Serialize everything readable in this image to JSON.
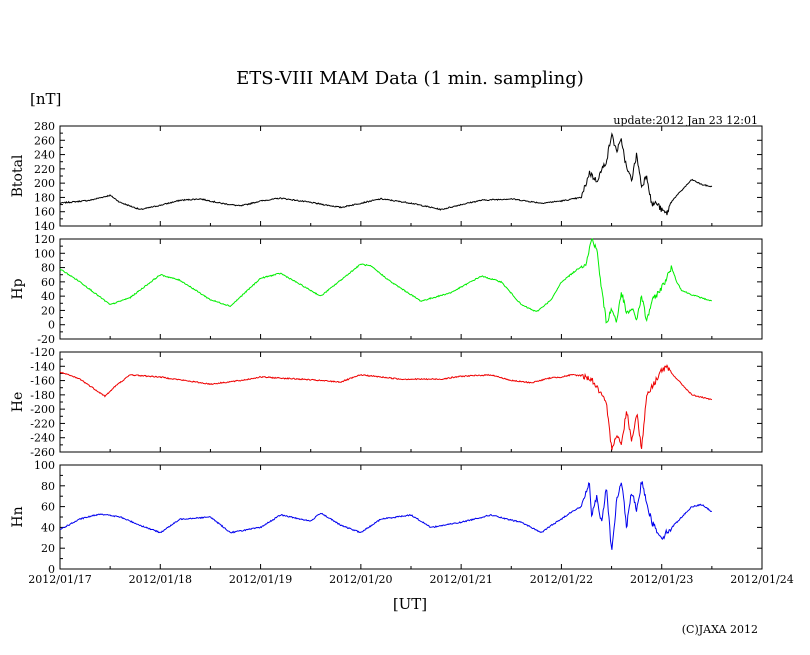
{
  "chart_data": {
    "type": "line",
    "title": "ETS-VIII MAM Data (1 min. sampling)",
    "unit_label": "[nT]",
    "update_text": "update:2012 Jan 23 12:01",
    "xlabel": "[UT]",
    "copyright": "(C)JAXA 2012",
    "x_range": [
      0,
      7
    ],
    "x_ticks": [
      "2012/01/17",
      "2012/01/18",
      "2012/01/19",
      "2012/01/20",
      "2012/01/21",
      "2012/01/22",
      "2012/01/23",
      "2012/01/24"
    ],
    "panels": [
      {
        "name": "btotal",
        "ylabel": "Btotal",
        "color": "#000000",
        "ylim": [
          140,
          280
        ],
        "y_ticks": [
          140,
          160,
          180,
          200,
          220,
          240,
          260,
          280
        ],
        "x": [
          0,
          0.3,
          0.5,
          0.6,
          0.8,
          1.0,
          1.2,
          1.4,
          1.6,
          1.8,
          2.0,
          2.2,
          2.5,
          2.8,
          3.0,
          3.2,
          3.5,
          3.8,
          4.0,
          4.2,
          4.5,
          4.8,
          5.0,
          5.2,
          5.28,
          5.35,
          5.45,
          5.5,
          5.55,
          5.6,
          5.65,
          5.7,
          5.75,
          5.8,
          5.85,
          5.9,
          5.95,
          6.0,
          6.05,
          6.1,
          6.2,
          6.3,
          6.4,
          6.5
        ],
        "y": [
          172,
          176,
          183,
          173,
          163,
          169,
          176,
          178,
          172,
          168,
          175,
          179,
          173,
          166,
          172,
          178,
          172,
          163,
          170,
          176,
          178,
          172,
          175,
          180,
          215,
          203,
          232,
          268,
          245,
          260,
          220,
          205,
          240,
          195,
          212,
          170,
          172,
          162,
          157,
          175,
          190,
          205,
          198,
          195
        ]
      },
      {
        "name": "hp",
        "ylabel": "Hp",
        "color": "#00ee00",
        "ylim": [
          -20,
          120
        ],
        "y_ticks": [
          -20,
          0,
          20,
          40,
          60,
          80,
          100,
          120
        ],
        "x": [
          0,
          0.2,
          0.5,
          0.7,
          1.0,
          1.2,
          1.5,
          1.7,
          2.0,
          2.2,
          2.6,
          3.0,
          3.1,
          3.3,
          3.6,
          3.9,
          4.2,
          4.4,
          4.6,
          4.75,
          4.9,
          5.0,
          5.2,
          5.25,
          5.3,
          5.35,
          5.4,
          5.45,
          5.5,
          5.55,
          5.6,
          5.65,
          5.7,
          5.75,
          5.8,
          5.85,
          5.9,
          6.0,
          6.1,
          6.15,
          6.2,
          6.3,
          6.5
        ],
        "y": [
          78,
          60,
          28,
          38,
          70,
          62,
          35,
          26,
          65,
          72,
          40,
          85,
          82,
          60,
          33,
          45,
          68,
          60,
          28,
          18,
          35,
          60,
          82,
          87,
          120,
          108,
          50,
          2,
          22,
          5,
          45,
          15,
          22,
          8,
          40,
          5,
          32,
          52,
          80,
          60,
          48,
          42,
          33
        ]
      },
      {
        "name": "he",
        "ylabel": "He",
        "color": "#ee0000",
        "ylim": [
          -260,
          -120
        ],
        "y_ticks": [
          -260,
          -240,
          -220,
          -200,
          -180,
          -160,
          -140,
          -120
        ],
        "x": [
          0,
          0.2,
          0.45,
          0.55,
          0.7,
          1.0,
          1.5,
          1.8,
          2.0,
          2.4,
          2.8,
          3.0,
          3.4,
          3.8,
          4.0,
          4.3,
          4.5,
          4.7,
          4.9,
          5.0,
          5.1,
          5.2,
          5.3,
          5.4,
          5.45,
          5.5,
          5.55,
          5.6,
          5.65,
          5.7,
          5.75,
          5.8,
          5.85,
          5.9,
          6.0,
          6.05,
          6.1,
          6.3,
          6.5
        ],
        "y": [
          -148,
          -158,
          -182,
          -168,
          -152,
          -155,
          -165,
          -160,
          -155,
          -158,
          -162,
          -152,
          -158,
          -158,
          -154,
          -152,
          -160,
          -163,
          -156,
          -155,
          -152,
          -153,
          -158,
          -180,
          -195,
          -255,
          -235,
          -250,
          -200,
          -245,
          -205,
          -255,
          -180,
          -170,
          -145,
          -142,
          -150,
          -180,
          -187
        ]
      },
      {
        "name": "hn",
        "ylabel": "Hn",
        "color": "#0000ee",
        "ylim": [
          0,
          100
        ],
        "y_ticks": [
          0,
          20,
          40,
          60,
          80,
          100
        ],
        "x": [
          0,
          0.2,
          0.4,
          0.6,
          0.8,
          1.0,
          1.2,
          1.5,
          1.7,
          2.0,
          2.2,
          2.5,
          2.6,
          2.8,
          3.0,
          3.2,
          3.5,
          3.7,
          4.0,
          4.3,
          4.45,
          4.6,
          4.8,
          4.9,
          5.0,
          5.1,
          5.2,
          5.28,
          5.3,
          5.35,
          5.4,
          5.45,
          5.5,
          5.55,
          5.6,
          5.65,
          5.7,
          5.75,
          5.8,
          5.9,
          6.0,
          6.1,
          6.2,
          6.3,
          6.4,
          6.5
        ],
        "y": [
          38,
          48,
          53,
          50,
          42,
          35,
          48,
          50,
          35,
          40,
          52,
          46,
          54,
          42,
          35,
          48,
          52,
          40,
          45,
          52,
          48,
          45,
          35,
          42,
          48,
          55,
          60,
          85,
          50,
          70,
          45,
          80,
          15,
          65,
          85,
          40,
          75,
          55,
          85,
          45,
          30,
          40,
          50,
          60,
          62,
          55
        ]
      }
    ]
  }
}
